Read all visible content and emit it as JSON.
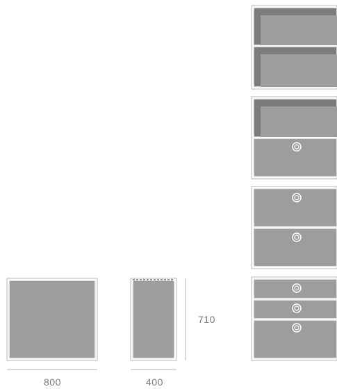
{
  "dimensions": {
    "width_front": "800",
    "depth_side": "400",
    "height": "710"
  },
  "colors": {
    "panel_fill": "#9b9d9f",
    "panel_edge": "#f2f2f2",
    "panel_inner_dark": "#7a7c7e",
    "frame_outline": "#b8b8b8",
    "dimension_line": "#b0b0b0",
    "label_text": "#7a7a7a",
    "knob_ring": "#ffffff"
  },
  "module_variants": [
    {
      "name": "two-open-shelves",
      "compartments": [
        "open",
        "open"
      ]
    },
    {
      "name": "open-shelf-and-drawer",
      "compartments": [
        "open",
        "drawer"
      ]
    },
    {
      "name": "two-drawers",
      "compartments": [
        "drawer",
        "drawer"
      ]
    },
    {
      "name": "three-drawers",
      "compartments": [
        "drawer",
        "drawer",
        "drawer"
      ]
    }
  ],
  "icons": [
    "drawer-knob-icon"
  ]
}
